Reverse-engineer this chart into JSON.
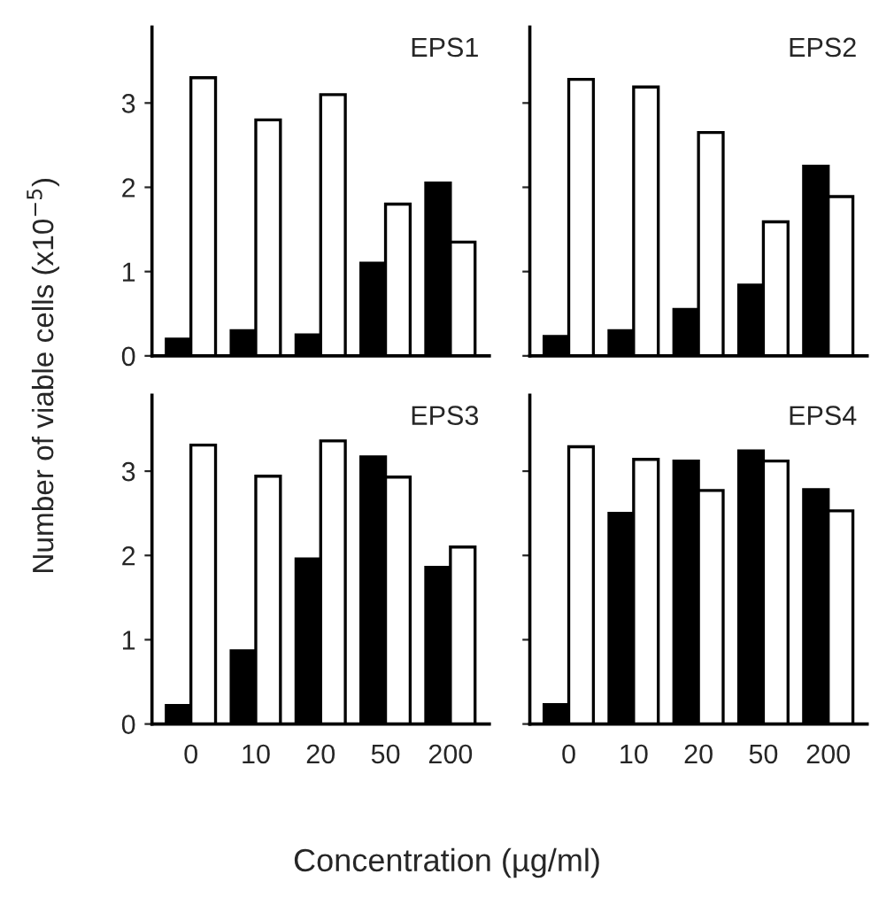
{
  "chart_data": [
    {
      "type": "bar",
      "title": "EPS1",
      "ylabel": "Number of viable cells (x10$^{−5}$)",
      "categories": [
        "0",
        "10",
        "20",
        "50",
        "200"
      ],
      "ylim": [
        0,
        3.9
      ],
      "yticks": [
        0,
        1,
        2,
        3
      ],
      "tick_labels": "y",
      "series": [
        {
          "color": "#000000",
          "values": [
            0.2,
            0.3,
            0.25,
            1.1,
            2.05
          ]
        },
        {
          "color": "#ffffff",
          "values": [
            3.3,
            2.8,
            3.1,
            1.8,
            1.35
          ]
        }
      ]
    },
    {
      "type": "bar",
      "title": "EPS2",
      "categories": [
        "0",
        "10",
        "20",
        "50",
        "200"
      ],
      "ylim": [
        0,
        3.9
      ],
      "yticks": [
        0,
        1,
        2,
        3
      ],
      "tick_labels": false,
      "series": [
        {
          "color": "#000000",
          "values": [
            0.23,
            0.3,
            0.55,
            0.84,
            2.25
          ]
        },
        {
          "color": "#ffffff",
          "values": [
            3.28,
            3.19,
            2.65,
            1.59,
            1.89
          ]
        }
      ]
    },
    {
      "type": "bar",
      "title": "EPS3",
      "xlabel": "Concentration (µg/ml)",
      "categories": [
        "0",
        "10",
        "20",
        "50",
        "200"
      ],
      "ylim": [
        0,
        3.9
      ],
      "yticks": [
        0,
        1,
        2,
        3
      ],
      "series": [
        {
          "color": "#000000",
          "values": [
            0.22,
            0.87,
            1.96,
            3.17,
            1.86
          ]
        },
        {
          "color": "#ffffff",
          "values": [
            3.31,
            2.94,
            3.36,
            2.93,
            2.1
          ]
        }
      ]
    },
    {
      "type": "bar",
      "title": "EPS4",
      "categories": [
        "0",
        "10",
        "20",
        "50",
        "200"
      ],
      "ylim": [
        0,
        3.9
      ],
      "yticks": [
        0,
        1,
        2,
        3
      ],
      "tick_labels": "x",
      "series": [
        {
          "color": "#000000",
          "values": [
            0.23,
            2.5,
            3.12,
            3.24,
            2.78
          ]
        },
        {
          "color": "#ffffff",
          "values": [
            3.29,
            3.14,
            2.77,
            3.12,
            2.53
          ]
        }
      ]
    }
  ]
}
